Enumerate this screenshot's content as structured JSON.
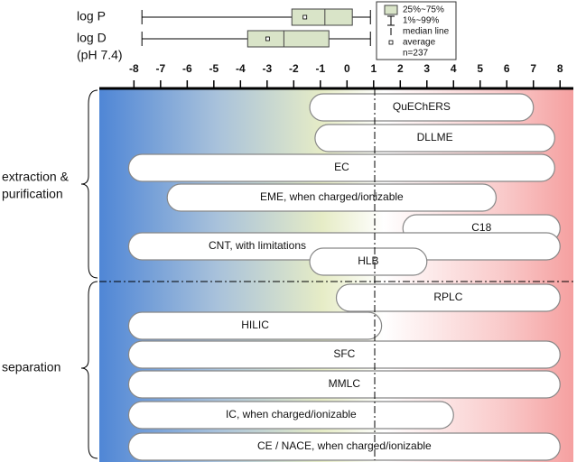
{
  "axis": {
    "xlim": [
      -9.3,
      8.5
    ],
    "xticks": [
      -8,
      -7,
      -6,
      -5,
      -4,
      -3,
      -2,
      -1,
      0,
      1,
      2,
      3,
      4,
      5,
      6,
      7,
      8
    ]
  },
  "boxplots": [
    {
      "label": "log P",
      "whisker": [
        -7.7,
        0.88
      ],
      "box": [
        -2.07,
        0.2
      ],
      "median": -0.83,
      "average": -1.58
    },
    {
      "label": "log D",
      "sublabel": "(pH 7.4)",
      "whisker": [
        -7.7,
        0.88
      ],
      "box": [
        -3.73,
        -0.68
      ],
      "median": -2.37,
      "average": -2.98
    }
  ],
  "legend": {
    "box": "25%~75%",
    "whisker": "1%~99%",
    "median": "median line",
    "average": "average",
    "n": "n=237"
  },
  "groups": [
    {
      "label_lines": [
        "extraction &",
        "purification"
      ]
    },
    {
      "label_lines": [
        "separation"
      ]
    }
  ],
  "methods": [
    {
      "label": "QuEChERS",
      "range": [
        -1.4,
        7
      ]
    },
    {
      "label": "DLLME",
      "range": [
        -1.2,
        7.8
      ]
    },
    {
      "label": "EC",
      "range": [
        -8.2,
        7.8
      ]
    },
    {
      "label": "EME, when charged/ionizable",
      "range": [
        -6.75,
        5.6
      ]
    },
    {
      "label": "C18",
      "range": [
        2.1,
        8
      ]
    },
    {
      "label": "CNT, with limitations",
      "range": [
        -8.2,
        8
      ]
    },
    {
      "label": "HLB",
      "range": [
        -1.4,
        3
      ]
    },
    {
      "label": "RPLC",
      "range": [
        -0.4,
        8
      ]
    },
    {
      "label": "HILIC",
      "range": [
        -8.2,
        1.3
      ]
    },
    {
      "label": "SFC",
      "range": [
        -8.2,
        8
      ]
    },
    {
      "label": "MMLC",
      "range": [
        -8.2,
        8
      ]
    },
    {
      "label": "IC, when charged/ionizable",
      "range": [
        -8.2,
        4
      ]
    },
    {
      "label": "CE / NACE, when charged/ionizable",
      "range": [
        -8.2,
        8
      ]
    }
  ]
}
